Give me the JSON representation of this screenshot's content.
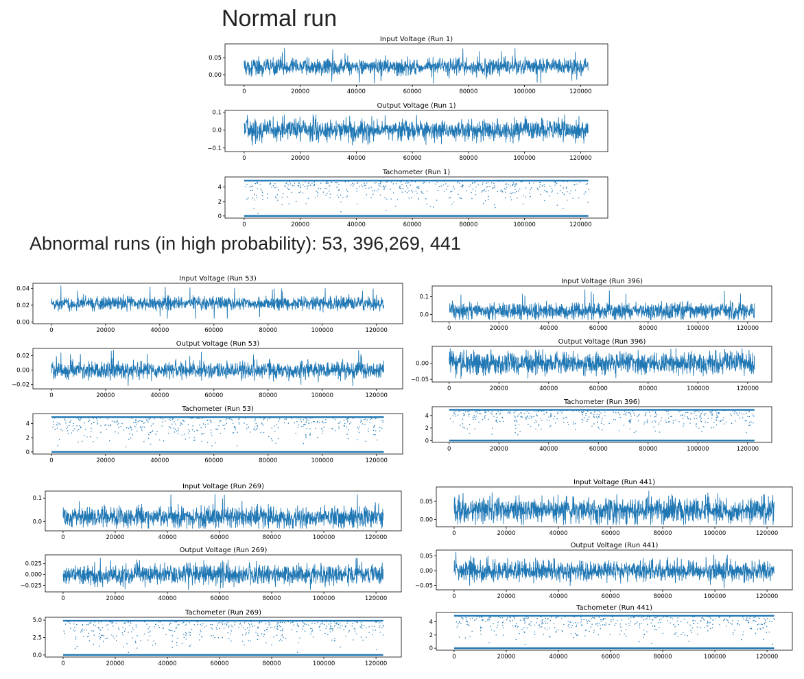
{
  "headings": {
    "normal": "Normal run",
    "abnormal": "Abnormal runs (in high probability): 53, 396,269, 441"
  },
  "colors": {
    "series": "#1f77b4",
    "axis": "#000000"
  },
  "chart_data": [
    {
      "id": "in-1",
      "type": "line",
      "title": "Input Voltage (Run 1)",
      "xlim": [
        0,
        122880
      ],
      "ylim": [
        -0.03,
        0.09
      ],
      "y_ticks": [
        {
          "value": 0.0,
          "label": "0.00"
        },
        {
          "value": 0.05,
          "label": "0.05"
        }
      ],
      "x_ticks": [
        0,
        20000,
        40000,
        60000,
        80000,
        100000,
        120000
      ],
      "signal": {
        "kind": "noise",
        "center": 0.023,
        "spread": 0.012,
        "peak_max": 0.08,
        "peak_min": -0.025
      }
    },
    {
      "id": "out-1",
      "type": "line",
      "title": "Output Voltage (Run 1)",
      "xlim": [
        0,
        122880
      ],
      "ylim": [
        -0.12,
        0.11
      ],
      "y_ticks": [
        {
          "value": -0.1,
          "label": "−0.1"
        },
        {
          "value": 0.0,
          "label": "0.0"
        },
        {
          "value": 0.1,
          "label": "0.1"
        }
      ],
      "x_ticks": [
        0,
        20000,
        40000,
        60000,
        80000,
        100000,
        120000
      ],
      "signal": {
        "kind": "noise",
        "center": 0.0,
        "spread": 0.03,
        "peak_max": 0.09,
        "peak_min": -0.1
      }
    },
    {
      "id": "tach-1",
      "type": "scatter",
      "title": "Tachometer (Run 1)",
      "xlim": [
        0,
        122880
      ],
      "ylim": [
        -0.3,
        5.4
      ],
      "y_ticks": [
        {
          "value": 0,
          "label": "0"
        },
        {
          "value": 2,
          "label": "2"
        },
        {
          "value": 4,
          "label": "4"
        }
      ],
      "x_ticks": [
        0,
        20000,
        40000,
        60000,
        80000,
        100000,
        120000
      ],
      "signal": {
        "kind": "pulse",
        "low": 0.0,
        "high": 4.9
      }
    },
    {
      "id": "in-53",
      "type": "line",
      "title": "Input Voltage (Run 53)",
      "xlim": [
        0,
        122880
      ],
      "ylim": [
        -0.002,
        0.046
      ],
      "y_ticks": [
        {
          "value": 0.0,
          "label": "0.00"
        },
        {
          "value": 0.02,
          "label": "0.02"
        },
        {
          "value": 0.04,
          "label": "0.04"
        }
      ],
      "x_ticks": [
        0,
        20000,
        40000,
        60000,
        80000,
        100000,
        120000
      ],
      "signal": {
        "kind": "noise",
        "center": 0.022,
        "spread": 0.004,
        "peak_max": 0.044,
        "peak_min": 0.004
      }
    },
    {
      "id": "out-53",
      "type": "line",
      "title": "Output Voltage (Run 53)",
      "xlim": [
        0,
        122880
      ],
      "ylim": [
        -0.026,
        0.03
      ],
      "y_ticks": [
        {
          "value": -0.02,
          "label": "−0.02"
        },
        {
          "value": 0.0,
          "label": "0.00"
        },
        {
          "value": 0.02,
          "label": "0.02"
        }
      ],
      "x_ticks": [
        0,
        20000,
        40000,
        60000,
        80000,
        100000,
        120000
      ],
      "signal": {
        "kind": "noise",
        "center": 0.0,
        "spread": 0.006,
        "peak_max": 0.028,
        "peak_min": -0.022
      }
    },
    {
      "id": "tach-53",
      "type": "scatter",
      "title": "Tachometer (Run 53)",
      "xlim": [
        0,
        122880
      ],
      "ylim": [
        -0.3,
        5.4
      ],
      "y_ticks": [
        {
          "value": 0,
          "label": "0"
        },
        {
          "value": 2,
          "label": "2"
        },
        {
          "value": 4,
          "label": "4"
        }
      ],
      "x_ticks": [
        0,
        20000,
        40000,
        60000,
        80000,
        100000,
        120000
      ],
      "signal": {
        "kind": "pulse",
        "low": 0.0,
        "high": 4.9
      }
    },
    {
      "id": "in-396",
      "type": "line",
      "title": "Input Voltage (Run 396)",
      "xlim": [
        0,
        122880
      ],
      "ylim": [
        -0.04,
        0.16
      ],
      "y_ticks": [
        {
          "value": 0.0,
          "label": "0.0"
        },
        {
          "value": 0.1,
          "label": "0.1"
        }
      ],
      "x_ticks": [
        0,
        20000,
        40000,
        60000,
        80000,
        100000,
        120000
      ],
      "signal": {
        "kind": "noise",
        "center": 0.02,
        "spread": 0.022,
        "peak_max": 0.15,
        "peak_min": -0.03
      }
    },
    {
      "id": "out-396",
      "type": "line",
      "title": "Output Voltage (Run 396)",
      "xlim": [
        0,
        122880
      ],
      "ylim": [
        -0.058,
        0.052
      ],
      "y_ticks": [
        {
          "value": -0.05,
          "label": "−0.05"
        },
        {
          "value": 0.0,
          "label": "0.00"
        }
      ],
      "x_ticks": [
        0,
        20000,
        40000,
        60000,
        80000,
        100000,
        120000
      ],
      "signal": {
        "kind": "noise",
        "center": 0.0,
        "spread": 0.016,
        "peak_max": 0.048,
        "peak_min": -0.05
      }
    },
    {
      "id": "tach-396",
      "type": "scatter",
      "title": "Tachometer (Run 396)",
      "xlim": [
        0,
        122880
      ],
      "ylim": [
        -0.3,
        5.4
      ],
      "y_ticks": [
        {
          "value": 0,
          "label": "0"
        },
        {
          "value": 2,
          "label": "2"
        },
        {
          "value": 4,
          "label": "4"
        }
      ],
      "x_ticks": [
        0,
        20000,
        40000,
        60000,
        80000,
        100000,
        120000
      ],
      "signal": {
        "kind": "pulse",
        "low": 0.0,
        "high": 4.9
      }
    },
    {
      "id": "in-269",
      "type": "line",
      "title": "Input Voltage (Run 269)",
      "xlim": [
        0,
        122880
      ],
      "ylim": [
        -0.04,
        0.13
      ],
      "y_ticks": [
        {
          "value": 0.0,
          "label": "0.0"
        },
        {
          "value": 0.1,
          "label": "0.1"
        }
      ],
      "x_ticks": [
        0,
        20000,
        40000,
        60000,
        80000,
        100000,
        120000
      ],
      "signal": {
        "kind": "noise",
        "center": 0.02,
        "spread": 0.022,
        "peak_max": 0.12,
        "peak_min": -0.03
      }
    },
    {
      "id": "out-269",
      "type": "line",
      "title": "Output Voltage (Run 269)",
      "xlim": [
        0,
        122880
      ],
      "ylim": [
        -0.04,
        0.045
      ],
      "y_ticks": [
        {
          "value": -0.025,
          "label": "−0.025"
        },
        {
          "value": 0.0,
          "label": "0.000"
        },
        {
          "value": 0.025,
          "label": "0.025"
        }
      ],
      "x_ticks": [
        0,
        20000,
        40000,
        60000,
        80000,
        100000,
        120000
      ],
      "signal": {
        "kind": "noise",
        "center": 0.0,
        "spread": 0.011,
        "peak_max": 0.04,
        "peak_min": -0.035
      }
    },
    {
      "id": "tach-269",
      "type": "scatter",
      "title": "Tachometer (Run 269)",
      "xlim": [
        0,
        122880
      ],
      "ylim": [
        -0.3,
        5.4
      ],
      "y_ticks": [
        {
          "value": 0,
          "label": "0.0"
        },
        {
          "value": 2.5,
          "label": "2.5"
        },
        {
          "value": 5,
          "label": "5.0"
        }
      ],
      "x_ticks": [
        0,
        20000,
        40000,
        60000,
        80000,
        100000,
        120000
      ],
      "signal": {
        "kind": "pulse",
        "low": 0.0,
        "high": 4.9
      }
    },
    {
      "id": "in-441",
      "type": "line",
      "title": "Input Voltage (Run 441)",
      "xlim": [
        0,
        122880
      ],
      "ylim": [
        -0.02,
        0.09
      ],
      "y_ticks": [
        {
          "value": 0.0,
          "label": "0.00"
        },
        {
          "value": 0.05,
          "label": "0.05"
        }
      ],
      "x_ticks": [
        0,
        20000,
        40000,
        60000,
        80000,
        100000,
        120000
      ],
      "signal": {
        "kind": "noise",
        "center": 0.025,
        "spread": 0.017,
        "peak_max": 0.08,
        "peak_min": -0.015
      }
    },
    {
      "id": "out-441",
      "type": "line",
      "title": "Output Voltage (Run 441)",
      "xlim": [
        0,
        122880
      ],
      "ylim": [
        -0.065,
        0.07
      ],
      "y_ticks": [
        {
          "value": -0.05,
          "label": "−0.05"
        },
        {
          "value": 0.0,
          "label": "0.00"
        },
        {
          "value": 0.05,
          "label": "0.05"
        }
      ],
      "x_ticks": [
        0,
        20000,
        40000,
        60000,
        80000,
        100000,
        120000
      ],
      "signal": {
        "kind": "noise",
        "center": 0.0,
        "spread": 0.017,
        "peak_max": 0.065,
        "peak_min": -0.06
      }
    },
    {
      "id": "tach-441",
      "type": "scatter",
      "title": "Tachometer (Run 441)",
      "xlim": [
        0,
        122880
      ],
      "ylim": [
        -0.3,
        5.4
      ],
      "y_ticks": [
        {
          "value": 0,
          "label": "0"
        },
        {
          "value": 2,
          "label": "2"
        },
        {
          "value": 4,
          "label": "4"
        }
      ],
      "x_ticks": [
        0,
        20000,
        40000,
        60000,
        80000,
        100000,
        120000
      ],
      "signal": {
        "kind": "pulse",
        "low": 0.0,
        "high": 4.9
      }
    }
  ]
}
